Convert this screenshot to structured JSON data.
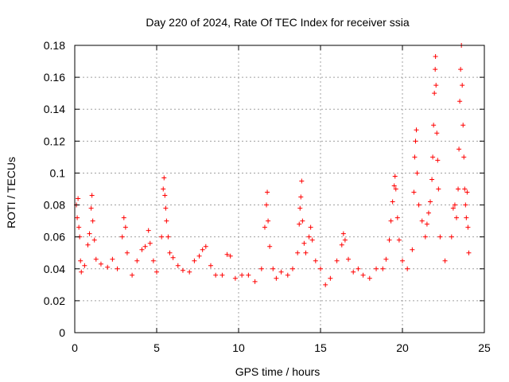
{
  "chart_data": {
    "type": "scatter",
    "title": "Day 220 of 2024, Rate Of TEC Index for receiver ssia",
    "xlabel": "GPS time / hours",
    "ylabel": "ROTI / TECUs",
    "xlim": [
      0,
      25
    ],
    "ylim": [
      0,
      0.18
    ],
    "x_ticks": [
      "0",
      "5",
      "10",
      "15",
      "20",
      "25"
    ],
    "y_ticks": [
      "0",
      "0.02",
      "0.04",
      "0.06",
      "0.08",
      "0.1",
      "0.12",
      "0.14",
      "0.16",
      "0.18"
    ],
    "grid": true,
    "marker": "+",
    "color": "#ff0000",
    "series": [
      {
        "points": [
          [
            0.1,
            0.08
          ],
          [
            0.15,
            0.072
          ],
          [
            0.2,
            0.084
          ],
          [
            0.25,
            0.066
          ],
          [
            0.3,
            0.06
          ],
          [
            0.35,
            0.045
          ],
          [
            0.4,
            0.038
          ],
          [
            0.6,
            0.042
          ],
          [
            0.8,
            0.055
          ],
          [
            0.9,
            0.062
          ],
          [
            1.0,
            0.078
          ],
          [
            1.05,
            0.086
          ],
          [
            1.1,
            0.07
          ],
          [
            1.2,
            0.058
          ],
          [
            1.3,
            0.046
          ],
          [
            1.6,
            0.043
          ],
          [
            2.0,
            0.041
          ],
          [
            2.3,
            0.046
          ],
          [
            2.6,
            0.04
          ],
          [
            2.9,
            0.06
          ],
          [
            3.0,
            0.072
          ],
          [
            3.1,
            0.066
          ],
          [
            3.2,
            0.05
          ],
          [
            3.5,
            0.036
          ],
          [
            3.8,
            0.045
          ],
          [
            4.1,
            0.052
          ],
          [
            4.3,
            0.054
          ],
          [
            4.5,
            0.064
          ],
          [
            4.6,
            0.056
          ],
          [
            4.8,
            0.045
          ],
          [
            5.0,
            0.038
          ],
          [
            5.3,
            0.06
          ],
          [
            5.4,
            0.09
          ],
          [
            5.45,
            0.097
          ],
          [
            5.5,
            0.086
          ],
          [
            5.55,
            0.078
          ],
          [
            5.6,
            0.07
          ],
          [
            5.7,
            0.06
          ],
          [
            5.8,
            0.05
          ],
          [
            6.0,
            0.047
          ],
          [
            6.3,
            0.042
          ],
          [
            6.6,
            0.039
          ],
          [
            7.0,
            0.038
          ],
          [
            7.3,
            0.045
          ],
          [
            7.6,
            0.048
          ],
          [
            7.8,
            0.052
          ],
          [
            8.0,
            0.054
          ],
          [
            8.3,
            0.042
          ],
          [
            8.6,
            0.036
          ],
          [
            9.0,
            0.036
          ],
          [
            9.3,
            0.049
          ],
          [
            9.5,
            0.048
          ],
          [
            9.8,
            0.034
          ],
          [
            10.2,
            0.036
          ],
          [
            10.6,
            0.036
          ],
          [
            11.0,
            0.032
          ],
          [
            11.4,
            0.04
          ],
          [
            11.6,
            0.066
          ],
          [
            11.7,
            0.08
          ],
          [
            11.75,
            0.088
          ],
          [
            11.8,
            0.07
          ],
          [
            11.9,
            0.054
          ],
          [
            12.1,
            0.04
          ],
          [
            12.3,
            0.034
          ],
          [
            12.6,
            0.038
          ],
          [
            13.0,
            0.036
          ],
          [
            13.3,
            0.04
          ],
          [
            13.6,
            0.05
          ],
          [
            13.7,
            0.068
          ],
          [
            13.75,
            0.078
          ],
          [
            13.8,
            0.085
          ],
          [
            13.85,
            0.095
          ],
          [
            13.9,
            0.07
          ],
          [
            14.0,
            0.056
          ],
          [
            14.1,
            0.05
          ],
          [
            14.3,
            0.06
          ],
          [
            14.4,
            0.066
          ],
          [
            14.5,
            0.058
          ],
          [
            14.7,
            0.045
          ],
          [
            15.0,
            0.04
          ],
          [
            15.3,
            0.03
          ],
          [
            15.6,
            0.034
          ],
          [
            16.0,
            0.045
          ],
          [
            16.3,
            0.055
          ],
          [
            16.4,
            0.062
          ],
          [
            16.5,
            0.058
          ],
          [
            16.7,
            0.046
          ],
          [
            17.0,
            0.038
          ],
          [
            17.3,
            0.04
          ],
          [
            17.6,
            0.036
          ],
          [
            18.0,
            0.034
          ],
          [
            18.4,
            0.04
          ],
          [
            18.8,
            0.04
          ],
          [
            19.0,
            0.046
          ],
          [
            19.2,
            0.058
          ],
          [
            19.3,
            0.07
          ],
          [
            19.4,
            0.082
          ],
          [
            19.5,
            0.092
          ],
          [
            19.55,
            0.098
          ],
          [
            19.6,
            0.09
          ],
          [
            19.7,
            0.072
          ],
          [
            19.8,
            0.058
          ],
          [
            20.0,
            0.045
          ],
          [
            20.3,
            0.04
          ],
          [
            20.6,
            0.052
          ],
          [
            20.7,
            0.088
          ],
          [
            20.75,
            0.11
          ],
          [
            20.8,
            0.12
          ],
          [
            20.85,
            0.127
          ],
          [
            20.9,
            0.1
          ],
          [
            21.0,
            0.08
          ],
          [
            21.2,
            0.07
          ],
          [
            21.4,
            0.06
          ],
          [
            21.5,
            0.068
          ],
          [
            21.6,
            0.075
          ],
          [
            21.7,
            0.082
          ],
          [
            21.8,
            0.096
          ],
          [
            21.85,
            0.11
          ],
          [
            21.9,
            0.13
          ],
          [
            21.95,
            0.15
          ],
          [
            22.0,
            0.165
          ],
          [
            22.02,
            0.173
          ],
          [
            22.05,
            0.155
          ],
          [
            22.1,
            0.125
          ],
          [
            22.15,
            0.108
          ],
          [
            22.2,
            0.09
          ],
          [
            22.3,
            0.06
          ],
          [
            22.6,
            0.045
          ],
          [
            23.0,
            0.06
          ],
          [
            23.1,
            0.078
          ],
          [
            23.2,
            0.08
          ],
          [
            23.3,
            0.072
          ],
          [
            23.4,
            0.09
          ],
          [
            23.45,
            0.115
          ],
          [
            23.5,
            0.145
          ],
          [
            23.55,
            0.165
          ],
          [
            23.6,
            0.18
          ],
          [
            23.65,
            0.155
          ],
          [
            23.7,
            0.13
          ],
          [
            23.75,
            0.11
          ],
          [
            23.8,
            0.09
          ],
          [
            23.85,
            0.08
          ],
          [
            23.9,
            0.072
          ],
          [
            23.95,
            0.088
          ],
          [
            24.0,
            0.066
          ],
          [
            24.05,
            0.05
          ]
        ]
      }
    ]
  }
}
